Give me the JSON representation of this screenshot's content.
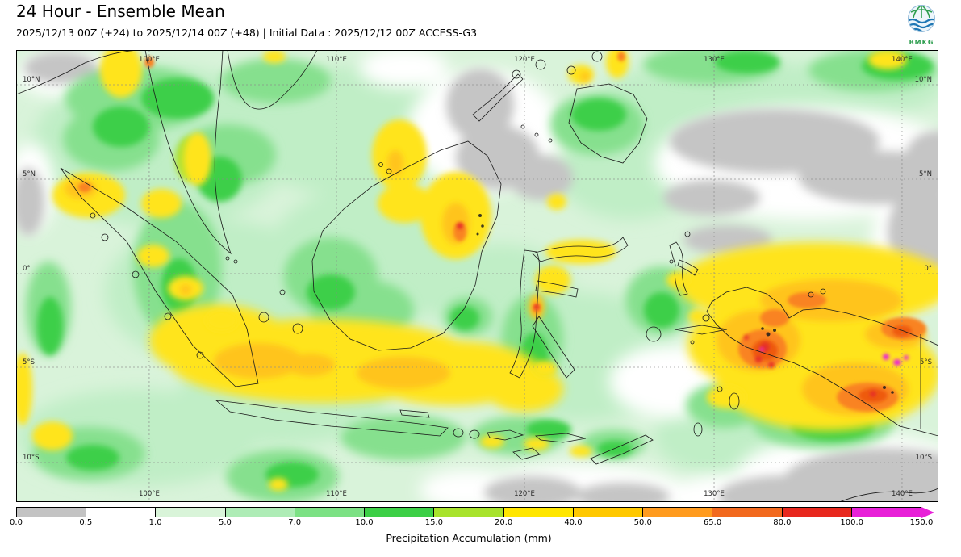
{
  "header": {
    "title": "24 Hour - Ensemble Mean",
    "subtitle": "2025/12/13 00Z (+24) to 2025/12/14 00Z (+48) | Initial Data : 2025/12/12 00Z ACCESS-G3"
  },
  "logo": {
    "text": "BMKG"
  },
  "map": {
    "lon_ticks": [
      {
        "label": "100°E",
        "pos": 0.1443
      },
      {
        "label": "110°E",
        "pos": 0.3473
      },
      {
        "label": "120°E",
        "pos": 0.5512
      },
      {
        "label": "130°E",
        "pos": 0.7568
      },
      {
        "label": "140°E",
        "pos": 0.9606
      }
    ],
    "lat_ticks": [
      {
        "label": "10°N",
        "pos": 0.0768
      },
      {
        "label": "5°N",
        "pos": 0.2857
      },
      {
        "label": "0°",
        "pos": 0.4946
      },
      {
        "label": "5°S",
        "pos": 0.7018
      },
      {
        "label": "10°S",
        "pos": 0.9125
      }
    ]
  },
  "legend": {
    "title": "Precipitation Accumulation (mm)",
    "tick_labels": [
      "0.0",
      "0.5",
      "1.0",
      "5.0",
      "7.0",
      "10.0",
      "15.0",
      "20.0",
      "40.0",
      "50.0",
      "65.0",
      "80.0",
      "100.0",
      "150.0"
    ],
    "segment_colors": [
      "#c3c3c3",
      "#ffffff",
      "#d9f4d9",
      "#aeecb6",
      "#7ce184",
      "#3ccf46",
      "#a8e32c",
      "#ffe600",
      "#ffc800",
      "#ff9b1e",
      "#f2691e",
      "#e8281e",
      "#e820d8"
    ]
  }
}
